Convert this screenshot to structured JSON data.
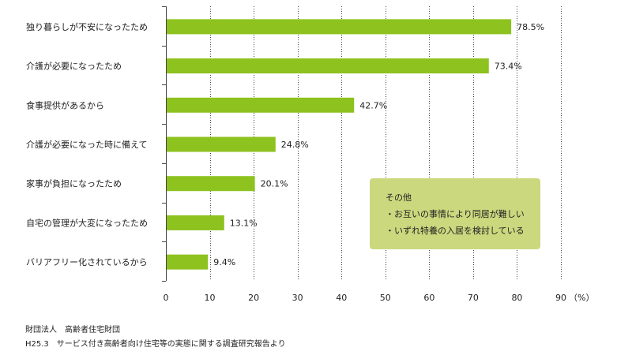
{
  "chart_data": {
    "type": "bar",
    "orientation": "horizontal",
    "categories": [
      "独り暮らしが不安になったため",
      "介護が必要になったため",
      "食事提供があるから",
      "介護が必要になった時に備えて",
      "家事が負担になったため",
      "自宅の管理が大変になったため",
      "バリアフリー化されているから"
    ],
    "values": [
      78.5,
      73.4,
      42.7,
      24.8,
      20.1,
      13.1,
      9.4
    ],
    "value_labels": [
      "78.5%",
      "73.4%",
      "42.7%",
      "24.8%",
      "20.1%",
      "13.1%",
      "9.4%"
    ],
    "xlim": [
      0,
      90
    ],
    "xticks": [
      "0",
      "10",
      "20",
      "30",
      "40",
      "50",
      "60",
      "70",
      "80",
      "90"
    ],
    "unit_label": "（%）",
    "bar_color": "#8dc21f",
    "grid": "vertical dotted",
    "legend": "none"
  },
  "note": {
    "title": "その他",
    "items": [
      "・お互いの事情により同居が難しい",
      "・いずれ特養の入居を検討している"
    ],
    "color": "#cbd87e"
  },
  "source": {
    "line1": "財団法人　高齢者住宅財団",
    "line2": "H25.3　サービス付き高齢者向け住宅等の実態に関する調査研究報告より"
  }
}
